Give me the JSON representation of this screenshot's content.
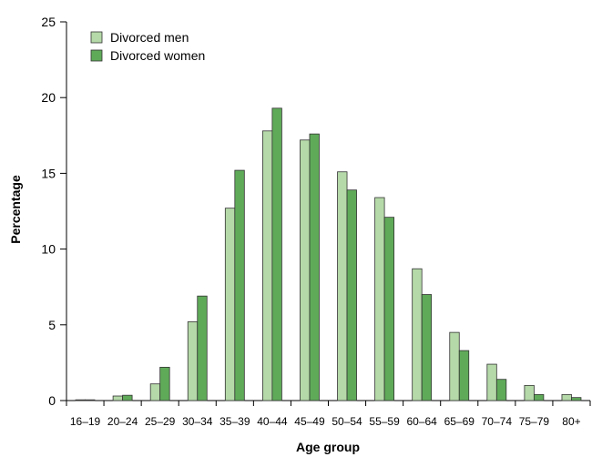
{
  "chart_data": {
    "type": "bar",
    "title": "",
    "xlabel": "Age group",
    "ylabel": "Percentage",
    "ylim": [
      0,
      25
    ],
    "yticks": [
      0,
      5,
      10,
      15,
      20,
      25
    ],
    "grid": false,
    "legend_position": "top-left",
    "categories": [
      "16–19",
      "20–24",
      "25–29",
      "30–34",
      "35–39",
      "40–44",
      "45–49",
      "50–54",
      "55–59",
      "60–64",
      "65–69",
      "70–74",
      "75–79",
      "80+"
    ],
    "series": [
      {
        "name": "Divorced men",
        "color": "#b5d9a8",
        "values": [
          0.05,
          0.3,
          1.1,
          5.2,
          12.7,
          17.8,
          17.2,
          15.1,
          13.4,
          8.7,
          4.5,
          2.4,
          1.0,
          0.4
        ]
      },
      {
        "name": "Divorced women",
        "color": "#5faa59",
        "values": [
          0.05,
          0.35,
          2.2,
          6.9,
          15.2,
          19.3,
          17.6,
          13.9,
          12.1,
          7.0,
          3.3,
          1.4,
          0.4,
          0.2
        ]
      }
    ]
  }
}
